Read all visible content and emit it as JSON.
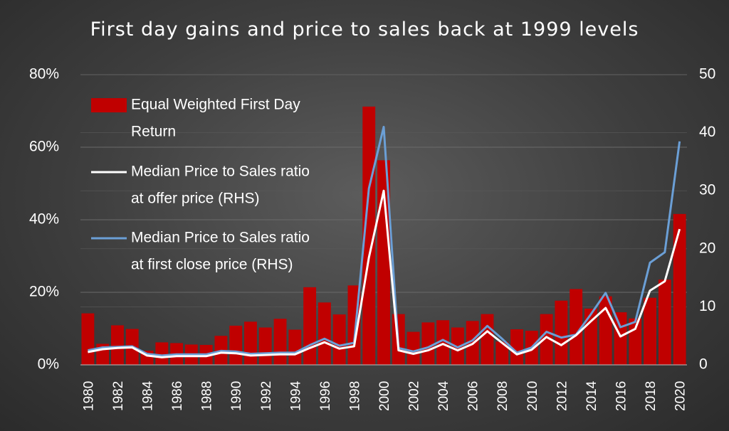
{
  "chart_data": {
    "type": "bar",
    "title": "First day gains and price to sales back at 1999 levels",
    "x": [
      1980,
      1981,
      1982,
      1983,
      1984,
      1985,
      1986,
      1987,
      1988,
      1989,
      1990,
      1991,
      1992,
      1993,
      1994,
      1995,
      1996,
      1997,
      1998,
      1999,
      2000,
      2001,
      2002,
      2003,
      2004,
      2005,
      2006,
      2007,
      2008,
      2009,
      2010,
      2011,
      2012,
      2013,
      2014,
      2015,
      2016,
      2017,
      2018,
      2019,
      2020
    ],
    "x_tick_labels": [
      "1980",
      "1982",
      "1984",
      "1986",
      "1988",
      "1990",
      "1992",
      "1994",
      "1996",
      "1998",
      "2000",
      "2002",
      "2004",
      "2006",
      "2008",
      "2010",
      "2012",
      "2014",
      "2016",
      "2018",
      "2020"
    ],
    "ylim_left": [
      0,
      80
    ],
    "ylim_right": [
      0,
      50
    ],
    "y_left_ticks": [
      "0%",
      "20%",
      "40%",
      "60%",
      "80%"
    ],
    "y_right_ticks": [
      "0",
      "10",
      "20",
      "30",
      "40",
      "50"
    ],
    "grid": true,
    "legend_position": "top-left",
    "series": [
      {
        "name": "Equal Weighted First Day Return",
        "legend_lines": [
          "Equal Weighted First Day",
          "Return"
        ],
        "type": "bar",
        "axis": "left",
        "color": "#c00000",
        "values": [
          14.2,
          5.8,
          10.9,
          9.9,
          3.9,
          6.2,
          6.0,
          5.6,
          5.5,
          8.0,
          10.8,
          11.9,
          10.3,
          12.7,
          9.7,
          21.4,
          17.2,
          13.9,
          21.9,
          71.2,
          56.4,
          14.0,
          9.1,
          11.7,
          12.3,
          10.3,
          12.1,
          14.0,
          6.4,
          9.8,
          9.4,
          14.0,
          17.7,
          20.9,
          15.5,
          18.9,
          14.5,
          12.8,
          18.5,
          23.5,
          41.6
        ]
      },
      {
        "name": "Median Price to Sales ratio at offer price (RHS)",
        "legend_lines": [
          "Median Price to Sales ratio",
          "at offer price (RHS)"
        ],
        "type": "line",
        "axis": "right",
        "color": "#ffffff",
        "values": [
          2.2,
          2.7,
          2.9,
          3.0,
          1.6,
          1.3,
          1.5,
          1.5,
          1.5,
          2.1,
          2.0,
          1.6,
          1.7,
          1.8,
          1.8,
          2.9,
          3.9,
          2.8,
          3.2,
          18.5,
          30.0,
          2.5,
          1.9,
          2.5,
          3.6,
          2.5,
          3.6,
          5.8,
          3.8,
          1.8,
          2.6,
          4.8,
          3.4,
          5.1,
          7.5,
          9.8,
          4.9,
          6.2,
          12.8,
          14.4,
          23.4
        ]
      },
      {
        "name": "Median Price to Sales ratio at first close price (RHS)",
        "legend_lines": [
          "Median Price to Sales ratio",
          "at first close price (RHS)"
        ],
        "type": "line",
        "axis": "right",
        "color": "#6b9fd6",
        "values": [
          2.5,
          3.0,
          3.1,
          3.2,
          1.9,
          1.6,
          1.8,
          1.8,
          1.8,
          2.4,
          2.3,
          1.9,
          2.0,
          2.1,
          2.1,
          3.4,
          4.5,
          3.3,
          3.8,
          30.4,
          41.0,
          2.9,
          2.3,
          3.0,
          4.3,
          3.0,
          4.2,
          6.7,
          4.5,
          2.1,
          3.0,
          5.7,
          4.7,
          5.2,
          8.7,
          12.4,
          6.5,
          7.4,
          17.6,
          19.4,
          38.5
        ]
      }
    ]
  }
}
